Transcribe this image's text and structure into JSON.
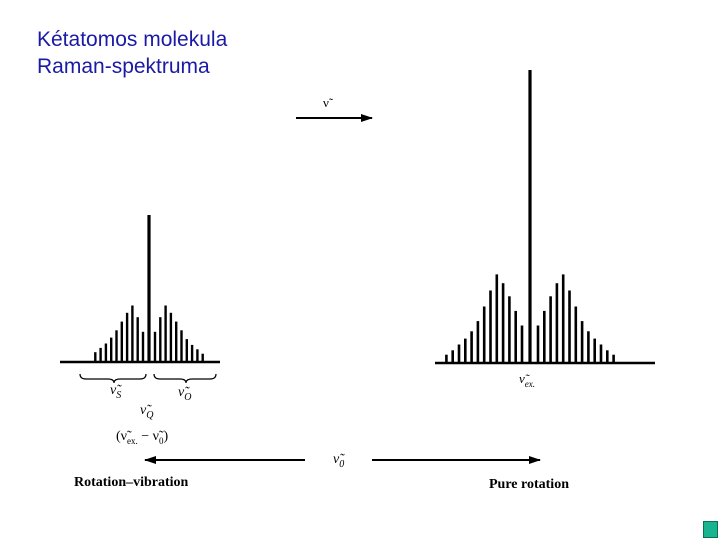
{
  "title": {
    "line1": "Kétatomos molekula",
    "line2": "Raman-spektruma"
  },
  "labels": {
    "nu_arrow": "ν̃",
    "nu_s": "ν̃",
    "nu_s_sub": "S",
    "nu_o": "ν̃",
    "nu_o_sub": "O",
    "nu_q": "ν̃",
    "nu_q_sub": "Q",
    "shift_a": "(ν̃",
    "shift_a_sub": "ex.",
    "shift_b": " − ν̃",
    "shift_b_sub": "0",
    "shift_c": ")",
    "nu_ex": "ν̃",
    "nu_ex_sub": "ex.",
    "nu_0": "ν̃",
    "nu_0_sub": "0",
    "rotation_vibration": "Rotation–vibration",
    "pure_rotation": "Pure rotation"
  },
  "chart_data": {
    "type": "bar",
    "x_direction": "wavenumber ν̃ increasing to the right",
    "groups": [
      {
        "name": "Rotation–vibration",
        "center": "ν̃Q",
        "central_line": 100,
        "s_branch": [
          6,
          9,
          12,
          16,
          21,
          27,
          33,
          38,
          30,
          20
        ],
        "o_branch": [
          20,
          30,
          38,
          33,
          27,
          21,
          15,
          11,
          8,
          5
        ]
      },
      {
        "name": "Pure rotation",
        "center": "ν̃ex.",
        "central_line": 200,
        "s_branch": [
          5,
          8,
          12,
          16,
          21,
          28,
          38,
          49,
          60,
          54,
          45,
          35,
          25
        ],
        "o_branch": [
          25,
          35,
          45,
          54,
          60,
          49,
          38,
          28,
          21,
          16,
          12,
          8,
          5
        ]
      }
    ]
  }
}
